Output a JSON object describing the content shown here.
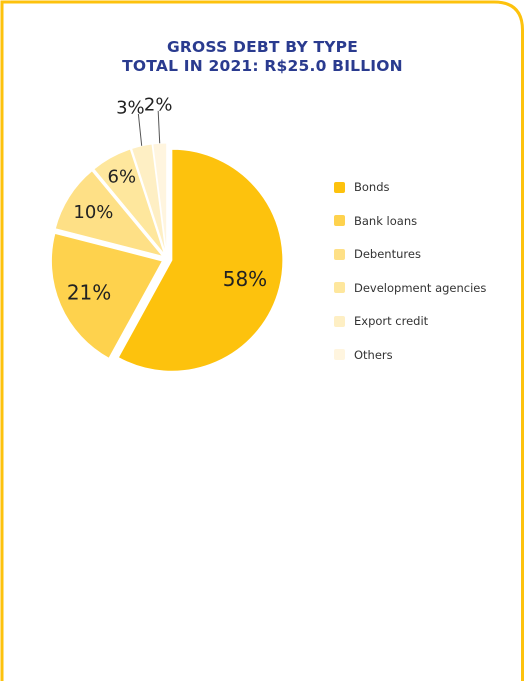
{
  "chart_data": {
    "type": "pie",
    "title_lines": [
      "GROSS DEBT BY TYPE",
      "TOTAL IN 2021: R$25.0 BILLION"
    ],
    "categories": [
      "Bonds",
      "Bank loans",
      "Debentures",
      "Development agencies",
      "Export credit",
      "Others"
    ],
    "values": [
      58,
      21,
      10,
      6,
      3,
      2
    ],
    "labels": [
      "58%",
      "21%",
      "10%",
      "6%",
      "3%",
      "2%"
    ],
    "colors": [
      "#fdc20d",
      "#fed24d",
      "#fee086",
      "#fee79d",
      "#feefc4",
      "#fff5df"
    ],
    "legend_position": "right"
  },
  "frame": {
    "border_color": "#fdc20d"
  }
}
